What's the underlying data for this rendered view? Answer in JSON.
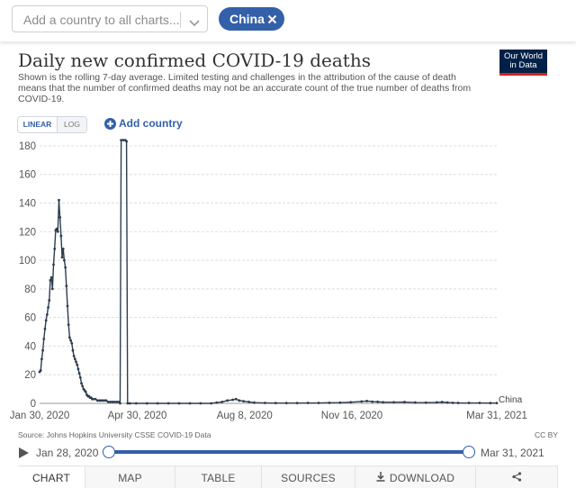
{
  "selector": {
    "placeholder": "Add a country to all charts...",
    "selected_chip": "China"
  },
  "header": {
    "title": "Daily new confirmed COVID-19 deaths",
    "subtitle": "Shown is the rolling 7-day average. Limited testing and challenges in the attribution of the cause of death means that the number of confirmed deaths may not be an accurate count of the true number of deaths from COVID-19.",
    "logo_line1": "Our World",
    "logo_line2": "in Data"
  },
  "controls": {
    "linear_label": "LINEAR",
    "log_label": "LOG",
    "add_country_label": "Add country"
  },
  "chart_data": {
    "type": "line",
    "title": "Daily new confirmed COVID-19 deaths",
    "ylabel": "",
    "xlabel": "",
    "ylim": [
      0,
      185
    ],
    "yticks": [
      0,
      20,
      40,
      60,
      80,
      100,
      120,
      140,
      160,
      180
    ],
    "x_start_day": 0,
    "x_end_day": 426,
    "x_tick_labels": [
      {
        "day": 0,
        "label": "Jan 30, 2020"
      },
      {
        "day": 91,
        "label": "Apr 30, 2020"
      },
      {
        "day": 191,
        "label": "Aug 8, 2020"
      },
      {
        "day": 291,
        "label": "Nov 16, 2020"
      },
      {
        "day": 426,
        "label": "Mar 31, 2021"
      }
    ],
    "grid": true,
    "series": [
      {
        "name": "China",
        "color": "#2c3e50",
        "points": [
          [
            0,
            22
          ],
          [
            1,
            23
          ],
          [
            2,
            31
          ],
          [
            3,
            37
          ],
          [
            4,
            45
          ],
          [
            5,
            52
          ],
          [
            6,
            58
          ],
          [
            7,
            62
          ],
          [
            8,
            67
          ],
          [
            9,
            72
          ],
          [
            10,
            86
          ],
          [
            11,
            88
          ],
          [
            12,
            80
          ],
          [
            13,
            97
          ],
          [
            14,
            108
          ],
          [
            15,
            121
          ],
          [
            16,
            122
          ],
          [
            17,
            120
          ],
          [
            18,
            142
          ],
          [
            19,
            130
          ],
          [
            20,
            117
          ],
          [
            21,
            102
          ],
          [
            22,
            108
          ],
          [
            23,
            100
          ],
          [
            24,
            95
          ],
          [
            25,
            82
          ],
          [
            26,
            68
          ],
          [
            27,
            55
          ],
          [
            28,
            46
          ],
          [
            29,
            44
          ],
          [
            30,
            42
          ],
          [
            31,
            37
          ],
          [
            32,
            33
          ],
          [
            33,
            31
          ],
          [
            34,
            29
          ],
          [
            35,
            27
          ],
          [
            36,
            24
          ],
          [
            37,
            21
          ],
          [
            38,
            18
          ],
          [
            39,
            14
          ],
          [
            40,
            12
          ],
          [
            41,
            10
          ],
          [
            42,
            9
          ],
          [
            43,
            8
          ],
          [
            44,
            6
          ],
          [
            45,
            5
          ],
          [
            46,
            5
          ],
          [
            47,
            4
          ],
          [
            48,
            4
          ],
          [
            49,
            3
          ],
          [
            50,
            3
          ],
          [
            52,
            3
          ],
          [
            54,
            2
          ],
          [
            56,
            2
          ],
          [
            58,
            2
          ],
          [
            60,
            2
          ],
          [
            62,
            2
          ],
          [
            64,
            1
          ],
          [
            66,
            1
          ],
          [
            68,
            1
          ],
          [
            70,
            1
          ],
          [
            72,
            1
          ],
          [
            74,
            1
          ],
          [
            75,
            0
          ],
          [
            76,
            184
          ],
          [
            78,
            184
          ],
          [
            80,
            184
          ],
          [
            81,
            183
          ],
          [
            82,
            0
          ],
          [
            84,
            0
          ],
          [
            90,
            0
          ],
          [
            100,
            0
          ],
          [
            110,
            0
          ],
          [
            120,
            0
          ],
          [
            130,
            0
          ],
          [
            140,
            0
          ],
          [
            150,
            0
          ],
          [
            160,
            0
          ],
          [
            165,
            0.5
          ],
          [
            170,
            1
          ],
          [
            175,
            2
          ],
          [
            180,
            2.5
          ],
          [
            183,
            3
          ],
          [
            186,
            2
          ],
          [
            190,
            1.5
          ],
          [
            195,
            1
          ],
          [
            200,
            0.5
          ],
          [
            210,
            0.3
          ],
          [
            220,
            0.2
          ],
          [
            230,
            0.2
          ],
          [
            240,
            0.2
          ],
          [
            250,
            0.3
          ],
          [
            260,
            0.3
          ],
          [
            270,
            0.4
          ],
          [
            280,
            0.5
          ],
          [
            290,
            0.8
          ],
          [
            300,
            1.3
          ],
          [
            305,
            1.6
          ],
          [
            310,
            1.2
          ],
          [
            315,
            1.1
          ],
          [
            320,
            0.8
          ],
          [
            330,
            0.8
          ],
          [
            340,
            0.9
          ],
          [
            350,
            0.6
          ],
          [
            360,
            0.5
          ],
          [
            370,
            0.7
          ],
          [
            375,
            0.9
          ],
          [
            380,
            0.6
          ],
          [
            385,
            0.4
          ],
          [
            390,
            0.3
          ],
          [
            400,
            0.3
          ],
          [
            410,
            0.3
          ],
          [
            420,
            0.2
          ],
          [
            426,
            0.2
          ]
        ]
      }
    ],
    "series_end_label": "China"
  },
  "footer": {
    "source": "Source: Johns Hopkins University CSSE COVID-19 Data",
    "license": "CC BY",
    "timeline_start": "Jan 28, 2020",
    "timeline_end": "Mar 31, 2021"
  },
  "tabs": [
    {
      "label": "CHART"
    },
    {
      "label": "MAP"
    },
    {
      "label": "TABLE"
    },
    {
      "label": "SOURCES"
    },
    {
      "label": "DOWNLOAD"
    }
  ]
}
